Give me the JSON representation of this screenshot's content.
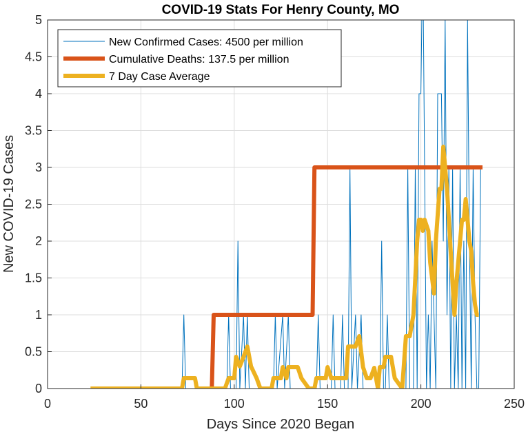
{
  "chart_data": {
    "type": "line",
    "title": "COVID-19 Stats For Henry County, MO",
    "xlabel": "Days Since 2020 Began",
    "ylabel": "New COVID-19 Cases",
    "xlim": [
      0,
      250
    ],
    "ylim": [
      0,
      5
    ],
    "xticks": [
      0,
      50,
      100,
      150,
      200,
      250
    ],
    "yticks": [
      0,
      0.5,
      1,
      1.5,
      2,
      2.5,
      3,
      3.5,
      4,
      4.5,
      5
    ],
    "xtick_labels": [
      "0",
      "50",
      "100",
      "150",
      "200",
      "250"
    ],
    "ytick_labels": [
      "0",
      "0.5",
      "1",
      "1.5",
      "2",
      "2.5",
      "3",
      "3.5",
      "4",
      "4.5",
      "5"
    ],
    "grid": true,
    "legend_position": "top-left",
    "series": [
      {
        "name": "New Confirmed Cases: 4500 per million",
        "color": "#0072BD",
        "points": [
          [
            23,
            0
          ],
          [
            72,
            0
          ],
          [
            73,
            1
          ],
          [
            74,
            0
          ],
          [
            96,
            0
          ],
          [
            97,
            1
          ],
          [
            98,
            0
          ],
          [
            101,
            0
          ],
          [
            102,
            2
          ],
          [
            103,
            0
          ],
          [
            105,
            1
          ],
          [
            106,
            0
          ],
          [
            107,
            1
          ],
          [
            108,
            0
          ],
          [
            121,
            0
          ],
          [
            122,
            1
          ],
          [
            123,
            0
          ],
          [
            126,
            1
          ],
          [
            127,
            0
          ],
          [
            129,
            1
          ],
          [
            130,
            0
          ],
          [
            144,
            0
          ],
          [
            145,
            1
          ],
          [
            146,
            0
          ],
          [
            152,
            0
          ],
          [
            153,
            1
          ],
          [
            154,
            0
          ],
          [
            157,
            0
          ],
          [
            158,
            1
          ],
          [
            159,
            0
          ],
          [
            161,
            0
          ],
          [
            162,
            3
          ],
          [
            163,
            0
          ],
          [
            165,
            1
          ],
          [
            166,
            0
          ],
          [
            168,
            1
          ],
          [
            169,
            0
          ],
          [
            178,
            0
          ],
          [
            179,
            2
          ],
          [
            180,
            0
          ],
          [
            181,
            0
          ],
          [
            182,
            1
          ],
          [
            183,
            0
          ],
          [
            192,
            0
          ],
          [
            193,
            3
          ],
          [
            194,
            0
          ],
          [
            196,
            0
          ],
          [
            197,
            3
          ],
          [
            198,
            0
          ],
          [
            199,
            4
          ],
          [
            200,
            4
          ],
          [
            201,
            6
          ],
          [
            202,
            3
          ],
          [
            203,
            0
          ],
          [
            204,
            1
          ],
          [
            205,
            0
          ],
          [
            206,
            2
          ],
          [
            207,
            1
          ],
          [
            208,
            0
          ],
          [
            209,
            4
          ],
          [
            210,
            4
          ],
          [
            211,
            4
          ],
          [
            212,
            2
          ],
          [
            213,
            5
          ],
          [
            214,
            1
          ],
          [
            215,
            3
          ],
          [
            216,
            0
          ],
          [
            217,
            3
          ],
          [
            218,
            0
          ],
          [
            219,
            1
          ],
          [
            220,
            0
          ],
          [
            221,
            3
          ],
          [
            222,
            0
          ],
          [
            223,
            2
          ],
          [
            224,
            0
          ],
          [
            225,
            5
          ],
          [
            226,
            2
          ],
          [
            227,
            0
          ],
          [
            228,
            3
          ],
          [
            229,
            1
          ],
          [
            230,
            0
          ],
          [
            231,
            0
          ],
          [
            232,
            3
          ]
        ]
      },
      {
        "name": "Cumulative Deaths: 137.5 per million",
        "color": "#D95319",
        "points": [
          [
            88,
            0
          ],
          [
            89,
            1
          ],
          [
            142,
            1
          ],
          [
            143,
            3
          ],
          [
            233,
            3
          ]
        ]
      },
      {
        "name": "7 Day Case Average",
        "color": "#EDB120",
        "points": [
          [
            23,
            0
          ],
          [
            72,
            0
          ],
          [
            73,
            0.14
          ],
          [
            79,
            0.14
          ],
          [
            80,
            0
          ],
          [
            95,
            0
          ],
          [
            97,
            0.14
          ],
          [
            100,
            0.14
          ],
          [
            101,
            0.43
          ],
          [
            103,
            0.3
          ],
          [
            105,
            0.43
          ],
          [
            107,
            0.57
          ],
          [
            109,
            0.3
          ],
          [
            112,
            0.14
          ],
          [
            114,
            0
          ],
          [
            120,
            0
          ],
          [
            121,
            0.14
          ],
          [
            125,
            0.14
          ],
          [
            126,
            0.29
          ],
          [
            128,
            0.14
          ],
          [
            129,
            0.29
          ],
          [
            134,
            0.29
          ],
          [
            136,
            0.14
          ],
          [
            140,
            0
          ],
          [
            143,
            0
          ],
          [
            144,
            0.14
          ],
          [
            149,
            0.14
          ],
          [
            150,
            0.29
          ],
          [
            152,
            0.14
          ],
          [
            155,
            0.14
          ],
          [
            157,
            0.14
          ],
          [
            160,
            0.14
          ],
          [
            161,
            0.57
          ],
          [
            165,
            0.57
          ],
          [
            167,
            0.71
          ],
          [
            169,
            0.29
          ],
          [
            171,
            0.14
          ],
          [
            173,
            0.14
          ],
          [
            175,
            0.28
          ],
          [
            177,
            0
          ],
          [
            178,
            0.29
          ],
          [
            180,
            0.29
          ],
          [
            181,
            0.43
          ],
          [
            184,
            0.43
          ],
          [
            186,
            0.14
          ],
          [
            190,
            0
          ],
          [
            192,
            0.71
          ],
          [
            194,
            0.71
          ],
          [
            196,
            1
          ],
          [
            198,
            2
          ],
          [
            199,
            2.29
          ],
          [
            200,
            2.29
          ],
          [
            201,
            2.14
          ],
          [
            202,
            2.29
          ],
          [
            204,
            2.14
          ],
          [
            205,
            1.71
          ],
          [
            207,
            1.29
          ],
          [
            208,
            2
          ],
          [
            210,
            2.71
          ],
          [
            211,
            2.71
          ],
          [
            212,
            3.28
          ],
          [
            213,
            3
          ],
          [
            214,
            2.71
          ],
          [
            215,
            2.29
          ],
          [
            217,
            1.43
          ],
          [
            218,
            1
          ],
          [
            219,
            1.43
          ],
          [
            221,
            2
          ],
          [
            222,
            2.29
          ],
          [
            223,
            2.29
          ],
          [
            224,
            2.57
          ],
          [
            225,
            2.29
          ],
          [
            226,
            2
          ],
          [
            227,
            1.86
          ],
          [
            228,
            1.43
          ],
          [
            229,
            1.14
          ],
          [
            230,
            1
          ],
          [
            231,
            1
          ]
        ]
      }
    ]
  }
}
